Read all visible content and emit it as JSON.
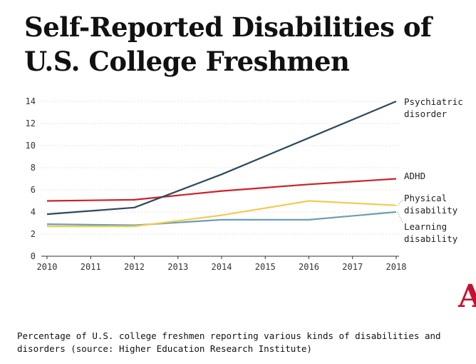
{
  "title": "Self-Reported Disabilities of U.S. College Freshmen",
  "caption": "Percentage of U.S. college freshmen reporting various kinds of disabilities and disorders (source: Higher Education Research Institute)",
  "logo_text": "A",
  "colors": {
    "psychiatric": "#2c4a5c",
    "adhd": "#cc2229",
    "physical": "#f0cc50",
    "learning": "#6a9fb5",
    "logo": "#c8102e"
  },
  "chart_data": {
    "type": "line",
    "title": "Self-Reported Disabilities of U.S. College Freshmen",
    "xlabel": "",
    "ylabel": "",
    "x": [
      2010,
      2011,
      2012,
      2013,
      2014,
      2015,
      2016,
      2017,
      2018
    ],
    "x_ticks": [
      "2010",
      "2011",
      "2012",
      "2013",
      "2014",
      "2015",
      "2016",
      "2017",
      "2018"
    ],
    "y_ticks": [
      "0",
      "2",
      "4",
      "6",
      "8",
      "10",
      "12",
      "14"
    ],
    "ylim": [
      0,
      14
    ],
    "xlim": [
      2010,
      2018
    ],
    "grid": true,
    "legend": "direct labels at right",
    "series": [
      {
        "key": "psychiatric",
        "label_lines": [
          "Psychiatric",
          "disorder"
        ],
        "x": [
          2010,
          2012,
          2014,
          2016,
          2018
        ],
        "values": [
          3.8,
          4.4,
          7.4,
          10.7,
          14.0
        ]
      },
      {
        "key": "adhd",
        "label_lines": [
          "ADHD"
        ],
        "x": [
          2010,
          2012,
          2014,
          2016,
          2018
        ],
        "values": [
          5.0,
          5.1,
          5.9,
          6.5,
          7.0
        ]
      },
      {
        "key": "physical",
        "label_lines": [
          "Physical",
          "disability"
        ],
        "x": [
          2010,
          2012,
          2014,
          2016,
          2018
        ],
        "values": [
          2.7,
          2.7,
          3.7,
          5.0,
          4.6
        ]
      },
      {
        "key": "learning",
        "label_lines": [
          "Learning",
          "disability"
        ],
        "x": [
          2010,
          2012,
          2014,
          2016,
          2018
        ],
        "values": [
          2.9,
          2.8,
          3.3,
          3.3,
          4.0
        ]
      }
    ]
  }
}
